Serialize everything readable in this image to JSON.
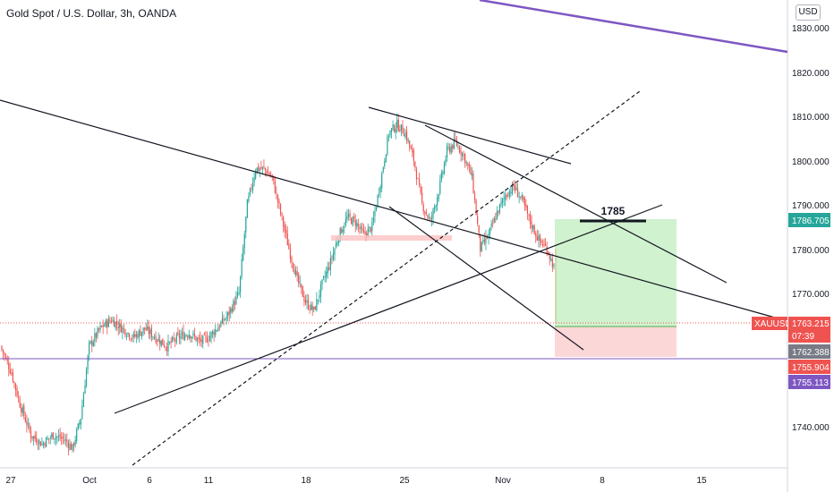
{
  "header": {
    "title": "Gold Spot / U.S. Dollar, 3h, OANDA",
    "currency_button": "USD"
  },
  "symbol": "XAUUSD",
  "colors": {
    "up": "#26a69a",
    "down": "#ef5350",
    "purple": "#7e57c2",
    "profit": "#d1f2cf",
    "loss": "#fbd3d3"
  },
  "price_axis": {
    "ticks": [
      "1830.000",
      "1820.000",
      "1810.000",
      "1800.000",
      "1790.000",
      "1780.000",
      "1770.000",
      "1740.000"
    ],
    "badges": {
      "target": "1786.705",
      "current_price": "1763.215",
      "countdown": "07:39",
      "position_entry": "1762.388",
      "stop": "1755.904",
      "line_level": "1755.113"
    }
  },
  "time_axis": {
    "ticks": [
      "27",
      "Oct",
      "6",
      "11",
      "18",
      "25",
      "Nov",
      "8",
      "15"
    ]
  },
  "annotations": {
    "target_label": "1785"
  },
  "chart_data": {
    "type": "candlestick",
    "symbol": "XAUUSD",
    "timeframe": "3h",
    "source": "OANDA",
    "ylim": [
      1734,
      1836
    ],
    "current_price": 1763.215,
    "target": 1786.705,
    "stop": 1755.904,
    "key_level": 1785,
    "y_ticks": [
      1830,
      1820,
      1810,
      1800,
      1790,
      1780,
      1770,
      1740
    ],
    "x_ticks": [
      "27",
      "Oct",
      "6",
      "11",
      "18",
      "25",
      "Nov",
      "8",
      "15"
    ]
  }
}
